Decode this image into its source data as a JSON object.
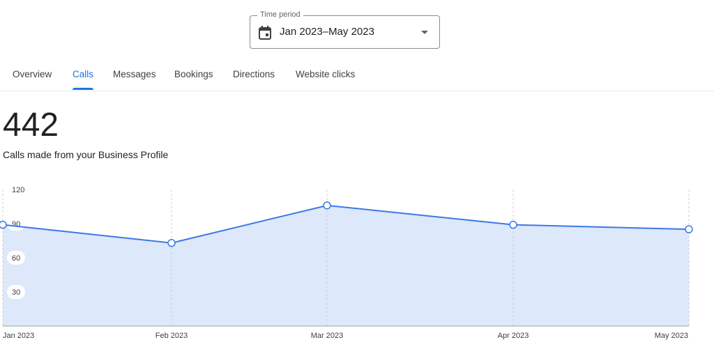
{
  "time_period": {
    "legend": "Time period",
    "value": "Jan 2023–May 2023",
    "icon": "calendar-icon"
  },
  "tabs": [
    {
      "label": "Overview",
      "active": false
    },
    {
      "label": "Calls",
      "active": true
    },
    {
      "label": "Messages",
      "active": false
    },
    {
      "label": "Bookings",
      "active": false
    },
    {
      "label": "Directions",
      "active": false
    },
    {
      "label": "Website clicks",
      "active": false
    }
  ],
  "metric": {
    "value": "442",
    "caption": "Calls made from your Business Profile"
  },
  "colors": {
    "accent": "#1a73e8",
    "line": "#3b78e7",
    "area": "#dde8fb"
  },
  "chart_data": {
    "type": "area",
    "categories": [
      "Jan 2023",
      "Feb 2023",
      "Mar 2023",
      "Apr 2023",
      "May 2023"
    ],
    "values": [
      89,
      73,
      106,
      89,
      85
    ],
    "y_ticks": [
      "30",
      "60",
      "90",
      "120"
    ],
    "ylim": [
      0,
      120
    ],
    "grid": "vertical dashed",
    "legend": "none"
  }
}
